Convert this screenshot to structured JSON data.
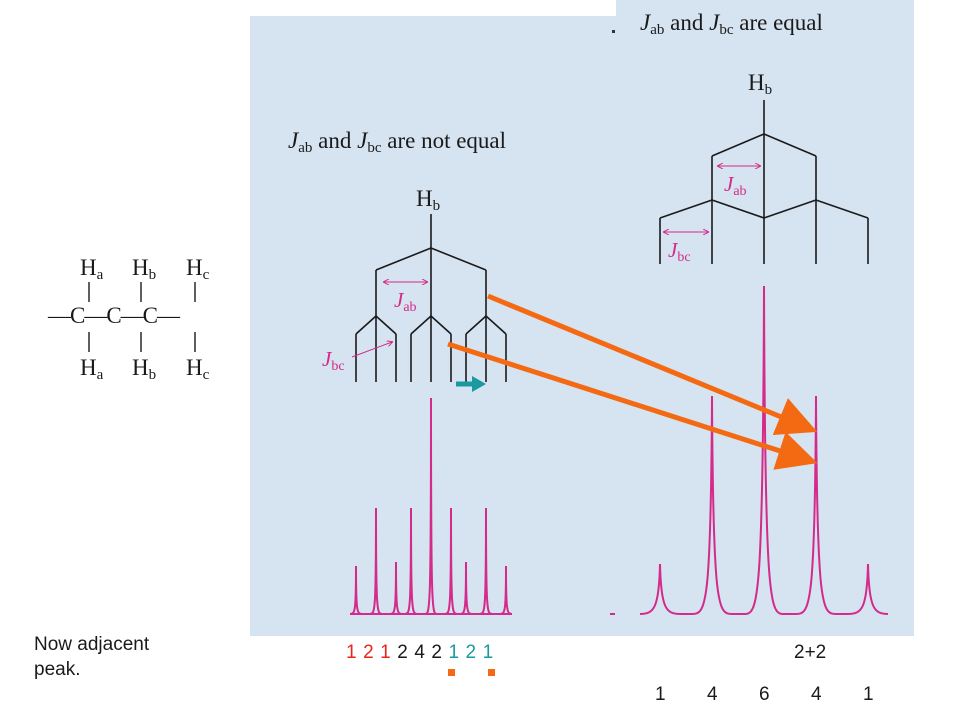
{
  "headings": {
    "equal": {
      "j1": "J",
      "s1": "ab",
      "mid": " and ",
      "j2": "J",
      "s2": "bc",
      "end": " are equal"
    },
    "not_equal": {
      "j1": "J",
      "s1": "ab",
      "mid": " and ",
      "j2": "J",
      "s2": "bc",
      "end": " are not equal"
    }
  },
  "hb_label": {
    "base": "H",
    "sub": "b"
  },
  "jab_label": {
    "base": "J",
    "sub": "ab"
  },
  "jbc_label": {
    "base": "J",
    "sub": "bc"
  },
  "molecule": {
    "top": [
      {
        "base": "H",
        "sub": "a"
      },
      {
        "base": "H",
        "sub": "b"
      },
      {
        "base": "H",
        "sub": "c"
      }
    ],
    "chain": "—C—C—C—",
    "bottom": [
      {
        "base": "H",
        "sub": "a"
      },
      {
        "base": "H",
        "sub": "b"
      },
      {
        "base": "H",
        "sub": "c"
      }
    ]
  },
  "note": "Now adjacent peak.",
  "left_intensities": [
    {
      "v": "1",
      "color": "red"
    },
    {
      "v": "2",
      "color": "red"
    },
    {
      "v": "1",
      "color": "red"
    },
    {
      "v": "2",
      "color": "dark"
    },
    {
      "v": "4",
      "color": "dark"
    },
    {
      "v": "2",
      "color": "dark"
    },
    {
      "v": "1",
      "color": "teal"
    },
    {
      "v": "2",
      "color": "teal"
    },
    {
      "v": "1",
      "color": "teal"
    }
  ],
  "sum_label": "2+2",
  "right_intensities": [
    "1",
    "4",
    "6",
    "4",
    "1"
  ],
  "colors": {
    "panel": "#d6e3f0",
    "peaks": "#d42a8a",
    "arrows": "#f46a13",
    "teal_arrow": "#1a9aa0",
    "red": "#e8261b",
    "teal": "#1a9aa0"
  }
}
